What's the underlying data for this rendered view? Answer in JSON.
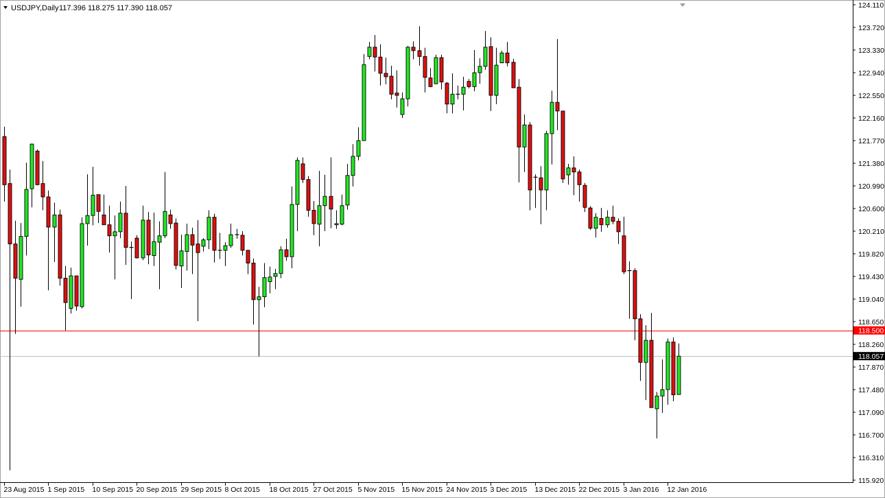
{
  "header": {
    "symbol": "USDJPY,Daily",
    "ohlc_text": "117.396 118.275 117.390 118.057"
  },
  "chart_data": {
    "type": "candlestick",
    "symbol": "USDJPY",
    "timeframe": "Daily",
    "ylim": [
      115.92,
      124.11
    ],
    "y_ticks": [
      "124.110",
      "123.720",
      "123.330",
      "122.940",
      "122.550",
      "122.160",
      "121.770",
      "121.380",
      "120.990",
      "120.600",
      "120.210",
      "119.820",
      "119.430",
      "119.040",
      "118.650",
      "118.260",
      "117.870",
      "117.480",
      "117.090",
      "116.700",
      "116.310",
      "115.920"
    ],
    "x_ticks": [
      {
        "candle": 0,
        "label": "23 Aug 2015"
      },
      {
        "candle": 8,
        "label": "1 Sep 2015"
      },
      {
        "candle": 16,
        "label": "10 Sep 2015"
      },
      {
        "candle": 24,
        "label": "20 Sep 2015"
      },
      {
        "candle": 32,
        "label": "29 Sep 2015"
      },
      {
        "candle": 40,
        "label": "8 Oct 2015"
      },
      {
        "candle": 48,
        "label": "18 Oct 2015"
      },
      {
        "candle": 56,
        "label": "27 Oct 2015"
      },
      {
        "candle": 64,
        "label": "5 Nov 2015"
      },
      {
        "candle": 72,
        "label": "15 Nov 2015"
      },
      {
        "candle": 80,
        "label": "24 Nov 2015"
      },
      {
        "candle": 88,
        "label": "3 Dec 2015"
      },
      {
        "candle": 96,
        "label": "13 Dec 2015"
      },
      {
        "candle": 104,
        "label": "22 Dec 2015"
      },
      {
        "candle": 112,
        "label": "3 Jan 2016"
      },
      {
        "candle": 120,
        "label": "12 Jan 2016"
      }
    ],
    "horizontal_lines": [
      {
        "price": 118.5,
        "label": "118.500",
        "color": "#ff0000",
        "label_bg": "#ff0000",
        "label_fg": "#ffffff"
      },
      {
        "price": 118.057,
        "label": "118.057",
        "color": "#c0c0c0",
        "label_bg": "#000000",
        "label_fg": "#ffffff"
      }
    ],
    "colors": {
      "bull": "#22e822",
      "bear": "#dd1111",
      "outline": "#000000",
      "wick": "#000000"
    },
    "candles_ohlc": [
      [
        121.84,
        122.01,
        120.72,
        121.01
      ],
      [
        121.03,
        121.27,
        116.09,
        119.99
      ],
      [
        119.99,
        120.39,
        118.44,
        119.4
      ],
      [
        119.38,
        120.35,
        118.91,
        120.12
      ],
      [
        120.12,
        121.39,
        119.79,
        120.93
      ],
      [
        120.94,
        121.72,
        120.62,
        121.71
      ],
      [
        121.59,
        121.62,
        121.0,
        121.01
      ],
      [
        121.03,
        121.42,
        120.57,
        120.8
      ],
      [
        120.8,
        120.91,
        119.19,
        120.28
      ],
      [
        120.28,
        120.7,
        119.68,
        120.49
      ],
      [
        120.49,
        120.58,
        119.27,
        119.4
      ],
      [
        119.4,
        119.61,
        118.5,
        118.98
      ],
      [
        118.88,
        119.58,
        118.79,
        119.44
      ],
      [
        119.44,
        119.44,
        118.84,
        118.92
      ],
      [
        118.91,
        120.45,
        118.88,
        120.34
      ],
      [
        120.34,
        121.19,
        119.96,
        120.48
      ],
      [
        120.48,
        121.32,
        120.31,
        120.83
      ],
      [
        120.84,
        120.84,
        120.35,
        120.55
      ],
      [
        120.49,
        120.84,
        120.32,
        120.32
      ],
      [
        120.32,
        120.65,
        119.84,
        120.13
      ],
      [
        120.13,
        120.48,
        119.38,
        120.2
      ],
      [
        120.2,
        120.72,
        120.09,
        120.52
      ],
      [
        120.52,
        120.99,
        119.63,
        119.93
      ],
      [
        119.93,
        120.03,
        119.04,
        119.93
      ],
      [
        120.09,
        120.14,
        119.74,
        119.75
      ],
      [
        119.75,
        120.65,
        119.71,
        120.4
      ],
      [
        120.4,
        120.54,
        119.64,
        119.8
      ],
      [
        119.79,
        120.53,
        119.61,
        120.03
      ],
      [
        120.02,
        120.38,
        119.21,
        120.13
      ],
      [
        120.13,
        121.23,
        120.09,
        120.55
      ],
      [
        120.49,
        120.58,
        120.25,
        120.34
      ],
      [
        120.35,
        120.43,
        119.55,
        119.62
      ],
      [
        119.61,
        120.15,
        119.23,
        119.87
      ],
      [
        119.86,
        120.34,
        119.53,
        120.15
      ],
      [
        120.15,
        120.27,
        119.47,
        119.97
      ],
      [
        119.99,
        120.4,
        118.66,
        119.84
      ],
      [
        119.95,
        120.09,
        119.86,
        120.06
      ],
      [
        120.06,
        120.57,
        119.9,
        120.45
      ],
      [
        120.45,
        120.51,
        119.67,
        119.88
      ],
      [
        119.88,
        120.18,
        119.73,
        119.88
      ],
      [
        119.88,
        120.02,
        119.61,
        119.96
      ],
      [
        119.96,
        120.34,
        119.92,
        120.15
      ],
      [
        120.15,
        120.25,
        120.08,
        120.15
      ],
      [
        120.14,
        120.21,
        119.79,
        119.88
      ],
      [
        119.88,
        119.89,
        119.47,
        119.66
      ],
      [
        119.66,
        119.74,
        118.6,
        119.03
      ],
      [
        119.03,
        119.25,
        118.05,
        119.08
      ],
      [
        119.08,
        119.66,
        118.9,
        119.41
      ],
      [
        119.34,
        119.6,
        119.14,
        119.42
      ],
      [
        119.43,
        119.56,
        119.21,
        119.48
      ],
      [
        119.48,
        119.95,
        119.4,
        119.89
      ],
      [
        119.89,
        120.08,
        119.7,
        119.77
      ],
      [
        119.77,
        120.98,
        119.57,
        120.67
      ],
      [
        120.67,
        121.48,
        120.21,
        121.43
      ],
      [
        121.37,
        121.48,
        121.04,
        121.1
      ],
      [
        121.1,
        121.16,
        120.46,
        120.57
      ],
      [
        120.57,
        120.73,
        120.14,
        120.34
      ],
      [
        120.33,
        121.25,
        119.95,
        120.65
      ],
      [
        120.65,
        121.18,
        120.21,
        120.81
      ],
      [
        120.81,
        121.48,
        120.26,
        120.59
      ],
      [
        120.32,
        120.57,
        120.25,
        120.34
      ],
      [
        120.33,
        120.84,
        120.31,
        120.65
      ],
      [
        120.66,
        121.37,
        120.58,
        121.17
      ],
      [
        121.17,
        121.71,
        120.98,
        121.5
      ],
      [
        121.5,
        122.0,
        121.43,
        121.77
      ],
      [
        121.77,
        123.26,
        121.77,
        123.08
      ],
      [
        123.22,
        123.47,
        123.17,
        123.38
      ],
      [
        123.38,
        123.59,
        122.96,
        123.21
      ],
      [
        123.21,
        123.43,
        122.72,
        122.93
      ],
      [
        122.93,
        123.2,
        122.74,
        122.87
      ],
      [
        122.88,
        123.06,
        122.48,
        122.57
      ],
      [
        122.59,
        122.98,
        122.34,
        122.55
      ],
      [
        122.22,
        122.6,
        122.16,
        122.49
      ],
      [
        122.49,
        123.4,
        122.36,
        123.38
      ],
      [
        123.38,
        123.48,
        123.17,
        123.32
      ],
      [
        123.32,
        123.74,
        123.06,
        123.22
      ],
      [
        123.22,
        123.37,
        122.6,
        122.86
      ],
      [
        122.85,
        123.02,
        122.69,
        122.7
      ],
      [
        122.75,
        123.25,
        122.74,
        123.2
      ],
      [
        123.2,
        123.25,
        122.65,
        122.78
      ],
      [
        122.76,
        122.78,
        122.24,
        122.4
      ],
      [
        122.4,
        122.93,
        122.24,
        122.57
      ],
      [
        122.57,
        122.72,
        122.48,
        122.57
      ],
      [
        122.57,
        122.87,
        122.29,
        122.69
      ],
      [
        122.79,
        122.83,
        122.67,
        122.7
      ],
      [
        122.7,
        123.33,
        122.62,
        122.94
      ],
      [
        122.94,
        123.19,
        122.75,
        123.05
      ],
      [
        123.05,
        123.66,
        122.99,
        123.38
      ],
      [
        123.39,
        123.55,
        122.28,
        122.55
      ],
      [
        122.55,
        123.37,
        122.4,
        123.07
      ],
      [
        123.11,
        123.32,
        123.11,
        123.28
      ],
      [
        123.28,
        123.47,
        123.05,
        123.11
      ],
      [
        123.12,
        123.18,
        122.68,
        122.68
      ],
      [
        122.69,
        122.83,
        121.05,
        121.66
      ],
      [
        121.66,
        122.22,
        121.23,
        122.04
      ],
      [
        122.04,
        122.09,
        120.57,
        120.92
      ],
      [
        121.14,
        121.19,
        120.61,
        121.14
      ],
      [
        121.13,
        121.33,
        120.33,
        120.92
      ],
      [
        120.92,
        121.94,
        120.57,
        121.89
      ],
      [
        121.89,
        122.63,
        121.36,
        122.43
      ],
      [
        122.43,
        123.52,
        121.95,
        122.28
      ],
      [
        122.28,
        122.28,
        121.04,
        121.11
      ],
      [
        121.18,
        121.37,
        121.01,
        121.3
      ],
      [
        121.3,
        121.5,
        120.83,
        121.23
      ],
      [
        121.23,
        121.27,
        120.72,
        121.01
      ],
      [
        121.0,
        121.04,
        120.54,
        120.62
      ],
      [
        120.61,
        120.64,
        120.23,
        120.26
      ],
      [
        120.26,
        120.52,
        120.1,
        120.45
      ],
      [
        120.43,
        120.61,
        120.2,
        120.32
      ],
      [
        120.32,
        120.57,
        120.27,
        120.45
      ],
      [
        120.45,
        120.65,
        120.33,
        120.38
      ],
      [
        120.38,
        120.43,
        119.99,
        120.2
      ],
      [
        120.13,
        120.46,
        119.47,
        119.51
      ],
      [
        119.53,
        119.69,
        118.7,
        119.53
      ],
      [
        119.53,
        119.57,
        118.33,
        118.7
      ],
      [
        118.7,
        118.78,
        117.63,
        117.95
      ],
      [
        117.95,
        118.59,
        117.3,
        118.33
      ],
      [
        118.33,
        118.8,
        117.17,
        117.17
      ],
      [
        117.15,
        117.44,
        116.64,
        117.37
      ],
      [
        117.37,
        118.0,
        117.08,
        117.48
      ],
      [
        117.48,
        118.36,
        117.22,
        118.3
      ],
      [
        118.3,
        118.38,
        117.28,
        117.39
      ],
      [
        117.396,
        118.275,
        117.39,
        118.057
      ]
    ]
  }
}
